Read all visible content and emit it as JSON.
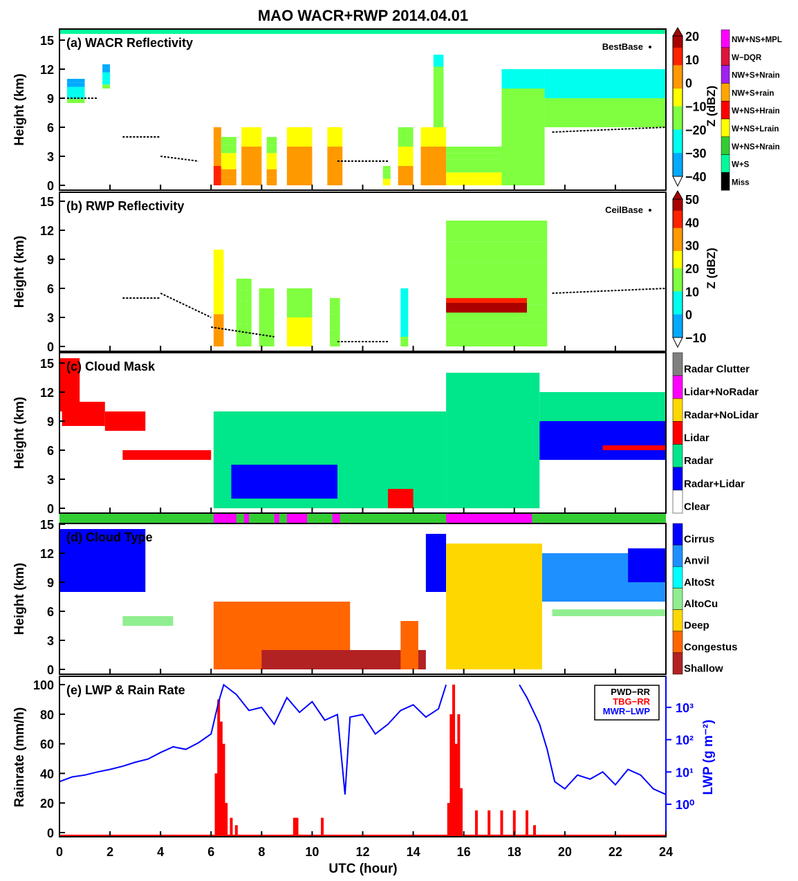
{
  "title": "MAO WACR+RWP  2014.04.01",
  "xlabel": "UTC (hour)",
  "xticks": [
    0,
    2,
    4,
    6,
    8,
    10,
    12,
    14,
    16,
    18,
    20,
    22,
    24
  ],
  "chart_data": [
    {
      "type": "heatmap",
      "panel": "a",
      "title": "(a) WACR Reflectivity",
      "ylabel": "Height (km)",
      "yticks": [
        0,
        3,
        6,
        9,
        12,
        15
      ],
      "ylim": [
        0,
        15.5
      ],
      "xlim": [
        0,
        24
      ],
      "annotation": "BestBase",
      "colorbar": {
        "label": "Z (dBZ)",
        "range": [
          -40,
          20
        ],
        "ticks": [
          20,
          10,
          0,
          -10,
          -20,
          -30,
          -40
        ]
      },
      "flag_legend": [
        {
          "label": "NW+NS+MPL",
          "color": "#ff00ff"
        },
        {
          "label": "W−DQR",
          "color": "#dc143c"
        },
        {
          "label": "NW+S+Nrain",
          "color": "#a020f0"
        },
        {
          "label": "NW+S+rain",
          "color": "#ffa500"
        },
        {
          "label": "W+NS+Hrain",
          "color": "#ff0000"
        },
        {
          "label": "W+NS+Lrain",
          "color": "#ffff00"
        },
        {
          "label": "W+NS+Nrain",
          "color": "#32cd32"
        },
        {
          "label": "W+S",
          "color": "#00fa9a"
        },
        {
          "label": "Miss",
          "color": "#000000"
        }
      ],
      "echoes": [
        [
          0.3,
          1.0,
          8.5,
          11,
          -30
        ],
        [
          1.7,
          2.0,
          10,
          12.5,
          -30
        ],
        [
          6.1,
          6.4,
          0,
          6,
          0
        ],
        [
          6.4,
          7.0,
          0,
          5,
          -10
        ],
        [
          7.2,
          8.0,
          0,
          6,
          -5
        ],
        [
          8.2,
          8.6,
          0,
          5,
          -10
        ],
        [
          9.0,
          10.0,
          0,
          6,
          -5
        ],
        [
          10.6,
          11.2,
          0,
          6,
          -5
        ],
        [
          12.8,
          13.1,
          0,
          2,
          -15
        ],
        [
          13.4,
          14.0,
          0,
          6,
          -10
        ],
        [
          14.3,
          15.3,
          0,
          6,
          -5
        ],
        [
          14.8,
          15.2,
          6,
          13.5,
          -20
        ],
        [
          15.3,
          17.5,
          0,
          4,
          -15
        ],
        [
          17.5,
          19.2,
          0,
          12,
          -20
        ],
        [
          19.2,
          24,
          6,
          12,
          -25
        ]
      ],
      "cloud_base": [
        [
          0.3,
          1.5,
          9,
          9
        ],
        [
          2.5,
          4.0,
          5,
          5
        ],
        [
          4.0,
          5.5,
          3,
          2.5
        ],
        [
          11,
          13,
          2.5,
          2.5
        ],
        [
          19.5,
          24,
          5.5,
          6
        ]
      ]
    },
    {
      "type": "heatmap",
      "panel": "b",
      "title": "(b) RWP Reflectivity",
      "ylabel": "Height (km)",
      "yticks": [
        0,
        3,
        6,
        9,
        12,
        15
      ],
      "ylim": [
        0,
        15.5
      ],
      "xlim": [
        0,
        24
      ],
      "annotation": "CeilBase",
      "colorbar": {
        "label": "Z (dBZ)",
        "range": [
          -10,
          50
        ],
        "ticks": [
          50,
          40,
          30,
          20,
          10,
          0,
          -10
        ]
      },
      "echoes": [
        [
          6.1,
          6.5,
          0,
          10,
          25
        ],
        [
          7.0,
          7.6,
          0,
          7,
          15
        ],
        [
          7.9,
          8.5,
          0,
          6,
          15
        ],
        [
          9.0,
          10.0,
          0,
          6,
          20
        ],
        [
          10.7,
          11.1,
          0,
          5,
          15
        ],
        [
          13.5,
          13.8,
          0,
          6,
          5
        ],
        [
          15.3,
          19.3,
          0,
          13,
          15
        ],
        [
          15.3,
          18.5,
          3.5,
          5,
          45
        ]
      ],
      "cloud_base": [
        [
          2.5,
          4.0,
          5,
          5
        ],
        [
          4.0,
          6.0,
          5.5,
          3
        ],
        [
          6.0,
          8.5,
          2,
          1
        ],
        [
          11,
          13,
          0.5,
          0.5
        ],
        [
          19.5,
          24,
          5.5,
          6
        ]
      ]
    },
    {
      "type": "heatmap",
      "panel": "c",
      "title": "(c) Cloud Mask",
      "ylabel": "Height (km)",
      "yticks": [
        0,
        3,
        6,
        9,
        12,
        15
      ],
      "ylim": [
        0,
        15.5
      ],
      "xlim": [
        0,
        24
      ],
      "classes": [
        {
          "label": "Radar Clutter",
          "color": "#808080"
        },
        {
          "label": "Lidar+NoRadar",
          "color": "#ff00ff"
        },
        {
          "label": "Radar+NoLidar",
          "color": "#ffd700"
        },
        {
          "label": "Lidar",
          "color": "#ff0000"
        },
        {
          "label": "Radar",
          "color": "#00e68a"
        },
        {
          "label": "Radar+Lidar",
          "color": "#0000ff"
        },
        {
          "label": "Clear",
          "color": "#ffffff"
        }
      ],
      "regions": [
        [
          0,
          0.8,
          10,
          15.5,
          3
        ],
        [
          0.1,
          1.8,
          8.5,
          11,
          3
        ],
        [
          1.8,
          3.4,
          8,
          10,
          3
        ],
        [
          2.5,
          6.0,
          5,
          6,
          3
        ],
        [
          6.1,
          15.3,
          0,
          10,
          4
        ],
        [
          6.8,
          11.0,
          1,
          4.5,
          5
        ],
        [
          13.0,
          14.0,
          0,
          2,
          3
        ],
        [
          15.3,
          19.0,
          0,
          14,
          4
        ],
        [
          19.0,
          24,
          7,
          12,
          4
        ],
        [
          19.0,
          24,
          5,
          9,
          5
        ],
        [
          21.5,
          24,
          6,
          6.5,
          3
        ]
      ]
    },
    {
      "type": "heatmap",
      "panel": "d",
      "title": "(d) Cloud Type",
      "ylabel": "Height (km)",
      "yticks": [
        0,
        3,
        6,
        9,
        12,
        15
      ],
      "ylim": [
        0,
        15.5
      ],
      "xlim": [
        0,
        24
      ],
      "classes": [
        {
          "label": "Cirrus",
          "color": "#0000ff"
        },
        {
          "label": "Anvil",
          "color": "#1e90ff"
        },
        {
          "label": "AltoSt",
          "color": "#00ffff"
        },
        {
          "label": "AltoCu",
          "color": "#90ee90"
        },
        {
          "label": "Deep",
          "color": "#ffd700"
        },
        {
          "label": "Congestus",
          "color": "#ff6600"
        },
        {
          "label": "Shallow",
          "color": "#b22222"
        }
      ],
      "regions": [
        [
          0,
          3.4,
          8,
          14.5,
          0
        ],
        [
          2.5,
          4.5,
          4.5,
          5.5,
          3
        ],
        [
          6.1,
          11.5,
          0,
          7,
          5
        ],
        [
          8.0,
          14.5,
          0,
          2,
          6
        ],
        [
          13.5,
          14.2,
          0,
          5,
          5
        ],
        [
          14.5,
          15.3,
          8,
          14,
          0
        ],
        [
          15.3,
          19.1,
          0,
          13,
          4
        ],
        [
          19.1,
          24,
          7,
          12,
          1
        ],
        [
          19.5,
          24,
          5.5,
          6.2,
          3
        ],
        [
          22.5,
          24,
          9,
          12.5,
          0
        ]
      ]
    },
    {
      "type": "line",
      "panel": "e",
      "title": "(e) LWP & Rain Rate",
      "ylabel": "Rainrate (mm/h)",
      "ylim": [
        0,
        100
      ],
      "yticks": [
        0,
        20,
        40,
        60,
        80,
        100
      ],
      "y2label": "LWP (g m⁻²)",
      "y2scale": "log",
      "y2lim": [
        0.1,
        5000
      ],
      "y2ticks": [
        "10⁰",
        "10¹",
        "10²",
        "10³"
      ],
      "legend": [
        {
          "name": "PWD−RR",
          "color": "#000000"
        },
        {
          "name": "TBG−RR",
          "color": "#ff0000"
        },
        {
          "name": "MWR−LWP",
          "color": "#0000ff"
        }
      ],
      "legend_position": "top-right",
      "series": [
        {
          "name": "TBG−RR",
          "axis": "left",
          "x": [
            6.2,
            6.3,
            6.4,
            6.5,
            6.6,
            6.8,
            7.0,
            9.3,
            9.4,
            10.4,
            15.4,
            15.5,
            15.6,
            15.7,
            15.8,
            15.9,
            16.5,
            17.0,
            17.5,
            18.0,
            18.5,
            18.8
          ],
          "y": [
            40,
            90,
            75,
            60,
            20,
            10,
            5,
            10,
            10,
            10,
            20,
            80,
            100,
            60,
            80,
            30,
            15,
            15,
            15,
            15,
            15,
            5
          ]
        },
        {
          "name": "MWR−LWP",
          "axis": "right",
          "x": [
            0,
            0.5,
            1,
            1.5,
            2,
            2.5,
            3,
            3.5,
            4,
            4.5,
            5,
            5.5,
            6,
            6.3,
            6.5,
            7,
            7.5,
            8,
            8.5,
            9,
            9.5,
            10,
            10.5,
            11,
            11.3,
            11.5,
            12,
            12.5,
            13,
            13.5,
            14,
            14.5,
            15,
            15.3,
            18.2,
            18.5,
            19,
            19.3,
            19.6,
            20,
            20.5,
            21,
            21.5,
            22,
            22.5,
            23,
            23.5,
            24
          ],
          "y": [
            5,
            7,
            8,
            10,
            12,
            15,
            20,
            25,
            40,
            60,
            50,
            80,
            150,
            1500,
            5000,
            2500,
            800,
            1000,
            300,
            2000,
            700,
            1500,
            400,
            600,
            2,
            500,
            600,
            150,
            300,
            800,
            1200,
            500,
            900,
            5000,
            5000,
            2000,
            300,
            50,
            5,
            3,
            8,
            6,
            10,
            4,
            12,
            8,
            3,
            2
          ]
        }
      ]
    }
  ],
  "strip": {
    "base": "#32cd32",
    "flag": "#ff00ff",
    "flag_hours": [
      [
        6.1,
        7.0
      ],
      [
        7.3,
        7.5
      ],
      [
        8.5,
        8.7
      ],
      [
        9.0,
        9.8
      ],
      [
        10.8,
        11.1
      ],
      [
        15.3,
        18.7
      ]
    ]
  }
}
